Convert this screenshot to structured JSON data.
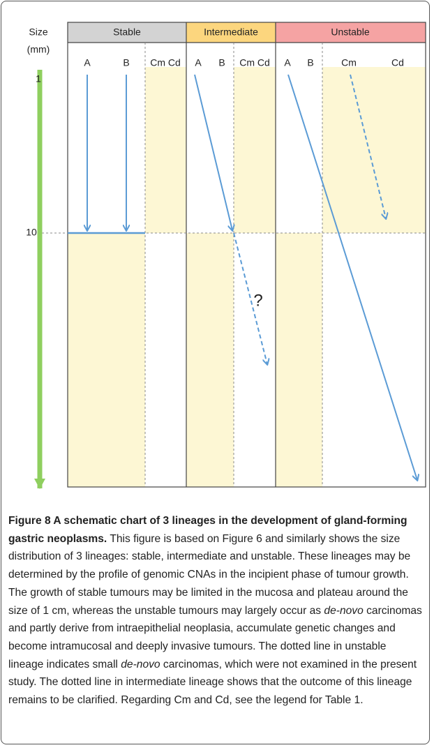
{
  "axis": {
    "label": "Size",
    "unit": "(mm)",
    "ticks": [
      "1",
      "10"
    ]
  },
  "lineages": [
    {
      "name": "Stable",
      "columns": [
        "A",
        "B",
        "Cm Cd"
      ]
    },
    {
      "name": "Intermediate",
      "columns": [
        "A",
        "B",
        "Cm Cd"
      ]
    },
    {
      "name": "Unstable",
      "columns": [
        "A",
        "B",
        "Cm",
        "Cd"
      ]
    }
  ],
  "question_mark": "?",
  "caption": {
    "title": "Figure 8 A schematic chart of 3 lineages in the development of gland-forming gastric neoplasms.",
    "parts": [
      " This figure is based on Figure 6 and similarly shows the size distribution of 3 lineages: stable, intermediate and unstable. These lineages may be determined by the profile of genomic CNAs in the incipient phase of tumour growth. The growth of stable tumours may be limited in the mucosa and plateau around the size of 1 cm, whereas the unstable tumours may largely occur as ",
      "de-novo",
      " carcinomas and partly derive from intraepithelial neoplasia, accumulate genetic changes and become intramucosal and deeply invasive tumours. The dotted line in unstable lineage indicates small ",
      "de-novo",
      " carcinomas, which were not examined in the present study. The dotted line in intermediate lineage shows that the outcome of this lineage remains to be clarified. Regarding Cm and Cd, see the legend for Table 1."
    ]
  }
}
